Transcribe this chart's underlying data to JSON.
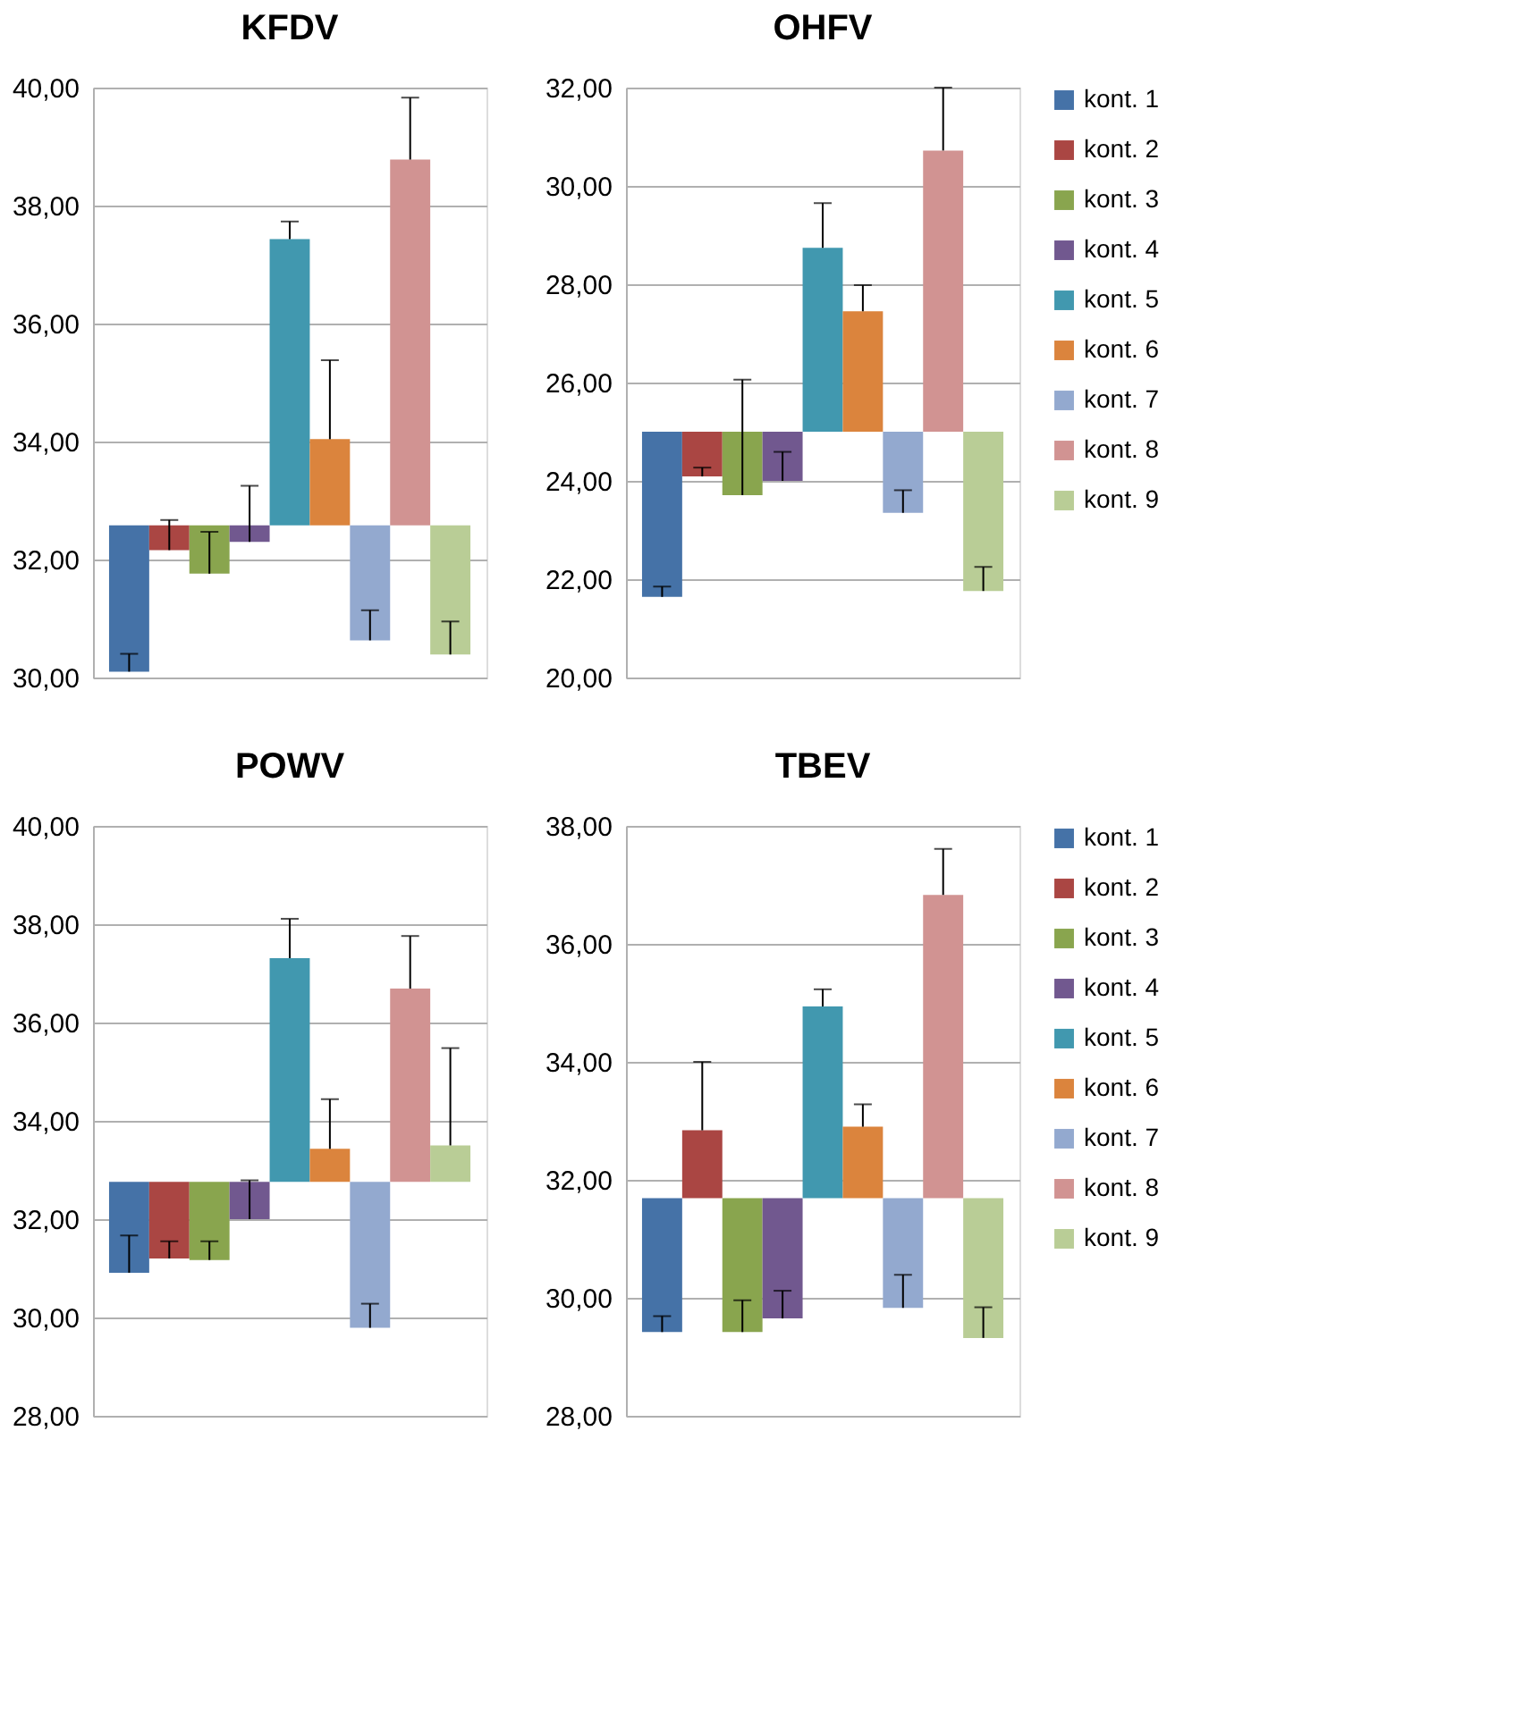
{
  "chart_data": [
    {
      "type": "bar",
      "title": "KFDV",
      "categories": [
        null
      ],
      "ylim": [
        30,
        40
      ],
      "yticks": [
        {
          "value": 30,
          "label": "30,00"
        },
        {
          "value": 32,
          "label": "32,00"
        },
        {
          "value": 34,
          "label": "34,00"
        },
        {
          "value": 36,
          "label": "36,00"
        },
        {
          "value": 38,
          "label": "38,00"
        },
        {
          "value": 40,
          "label": "40,00"
        }
      ],
      "grid": "y",
      "legend": false,
      "series": [
        {
          "color": "#4572a7",
          "base": [
            32.58
          ],
          "values": [
            -2.48
          ],
          "errors": [
            [
              30.1,
              30.4
            ]
          ]
        },
        {
          "color": "#aa4643",
          "base": [
            32.58
          ],
          "values": [
            -0.42
          ],
          "errors": [
            [
              32.16,
              32.67
            ]
          ]
        },
        {
          "color": "#89a54e",
          "base": [
            32.58
          ],
          "values": [
            -0.82
          ],
          "errors": [
            [
              31.76,
              32.47
            ]
          ]
        },
        {
          "color": "#71588f",
          "base": [
            32.58
          ],
          "values": [
            -0.28
          ],
          "errors": [
            [
              32.3,
              33.25
            ]
          ]
        },
        {
          "color": "#4198af",
          "base": [
            32.58
          ],
          "values": [
            4.85
          ],
          "errors": [
            [
              37.43,
              37.73
            ]
          ]
        },
        {
          "color": "#db843d",
          "base": [
            32.58
          ],
          "values": [
            1.46
          ],
          "errors": [
            [
              34.04,
              35.38
            ]
          ]
        },
        {
          "color": "#93a9cf",
          "base": [
            32.58
          ],
          "values": [
            -1.95
          ],
          "errors": [
            [
              30.63,
              31.14
            ]
          ]
        },
        {
          "color": "#d19392",
          "base": [
            32.58
          ],
          "values": [
            6.2
          ],
          "errors": [
            [
              38.78,
              39.83
            ]
          ]
        },
        {
          "color": "#b9cd96",
          "base": [
            32.58
          ],
          "values": [
            -2.19
          ],
          "errors": [
            [
              30.39,
              30.95
            ]
          ]
        }
      ]
    },
    {
      "type": "bar",
      "title": "OHFV",
      "categories": [
        null
      ],
      "ylim": [
        20,
        32
      ],
      "yticks": [
        {
          "value": 20,
          "label": "20,00"
        },
        {
          "value": 22,
          "label": "22,00"
        },
        {
          "value": 24,
          "label": "24,00"
        },
        {
          "value": 26,
          "label": "26,00"
        },
        {
          "value": 28,
          "label": "28,00"
        },
        {
          "value": 30,
          "label": "30,00"
        },
        {
          "value": 32,
          "label": "32,00"
        }
      ],
      "grid": "y",
      "legend": "right",
      "series": [
        {
          "name": "kont. 1",
          "color": "#4572a7",
          "base": [
            25.0
          ],
          "values": [
            -3.36
          ],
          "errors": [
            [
              21.64,
              21.85
            ]
          ]
        },
        {
          "name": "kont. 2",
          "color": "#aa4643",
          "base": [
            25.0
          ],
          "values": [
            -0.91
          ],
          "errors": [
            [
              24.09,
              24.27
            ]
          ]
        },
        {
          "name": "kont. 3",
          "color": "#89a54e",
          "base": [
            25.0
          ],
          "values": [
            -1.29
          ],
          "errors": [
            [
              23.71,
              26.06
            ]
          ]
        },
        {
          "name": "kont. 4",
          "color": "#71588f",
          "base": [
            25.0
          ],
          "values": [
            -1.0
          ],
          "errors": [
            [
              24.0,
              24.59
            ]
          ]
        },
        {
          "name": "kont. 5",
          "color": "#4198af",
          "base": [
            25.0
          ],
          "values": [
            3.74
          ],
          "errors": [
            [
              28.74,
              29.65
            ]
          ]
        },
        {
          "name": "kont. 6",
          "color": "#db843d",
          "base": [
            25.0
          ],
          "values": [
            2.45
          ],
          "errors": [
            [
              27.45,
              27.98
            ]
          ]
        },
        {
          "name": "kont. 7",
          "color": "#93a9cf",
          "base": [
            25.0
          ],
          "values": [
            -1.65
          ],
          "errors": [
            [
              23.35,
              23.81
            ]
          ]
        },
        {
          "name": "kont. 8",
          "color": "#d19392",
          "base": [
            25.0
          ],
          "values": [
            5.72
          ],
          "errors": [
            [
              30.72,
              32.0
            ]
          ]
        },
        {
          "name": "kont. 9",
          "color": "#b9cd96",
          "base": [
            25.0
          ],
          "values": [
            -3.24
          ],
          "errors": [
            [
              21.76,
              22.25
            ]
          ]
        }
      ]
    },
    {
      "type": "bar",
      "title": "POWV",
      "categories": [
        null
      ],
      "ylim": [
        28,
        40
      ],
      "yticks": [
        {
          "value": 28,
          "label": "28,00"
        },
        {
          "value": 30,
          "label": "30,00"
        },
        {
          "value": 32,
          "label": "32,00"
        },
        {
          "value": 34,
          "label": "34,00"
        },
        {
          "value": 36,
          "label": "36,00"
        },
        {
          "value": 38,
          "label": "38,00"
        },
        {
          "value": 40,
          "label": "40,00"
        }
      ],
      "grid": "y",
      "legend": false,
      "series": [
        {
          "color": "#4572a7",
          "base": [
            32.76
          ],
          "values": [
            -1.85
          ],
          "errors": [
            [
              30.91,
              31.67
            ]
          ]
        },
        {
          "color": "#aa4643",
          "base": [
            32.76
          ],
          "values": [
            -1.56
          ],
          "errors": [
            [
              31.2,
              31.55
            ]
          ]
        },
        {
          "color": "#89a54e",
          "base": [
            32.76
          ],
          "values": [
            -1.59
          ],
          "errors": [
            [
              31.17,
              31.55
            ]
          ]
        },
        {
          "color": "#71588f",
          "base": [
            32.76
          ],
          "values": [
            -0.76
          ],
          "errors": [
            [
              32.0,
              32.79
            ]
          ]
        },
        {
          "color": "#4198af",
          "base": [
            32.76
          ],
          "values": [
            4.55
          ],
          "errors": [
            [
              37.31,
              38.11
            ]
          ]
        },
        {
          "color": "#db843d",
          "base": [
            32.76
          ],
          "values": [
            0.67
          ],
          "errors": [
            [
              33.43,
              34.44
            ]
          ]
        },
        {
          "color": "#93a9cf",
          "base": [
            32.76
          ],
          "values": [
            -2.97
          ],
          "errors": [
            [
              29.79,
              30.28
            ]
          ]
        },
        {
          "color": "#d19392",
          "base": [
            32.76
          ],
          "values": [
            3.93
          ],
          "errors": [
            [
              36.69,
              37.76
            ]
          ]
        },
        {
          "color": "#b9cd96",
          "base": [
            32.76
          ],
          "values": [
            0.74
          ],
          "errors": [
            [
              33.5,
              35.48
            ]
          ]
        }
      ]
    },
    {
      "type": "bar",
      "title": "TBEV",
      "categories": [
        null
      ],
      "ylim": [
        28,
        38
      ],
      "yticks": [
        {
          "value": 28,
          "label": "28,00"
        },
        {
          "value": 30,
          "label": "30,00"
        },
        {
          "value": 32,
          "label": "32,00"
        },
        {
          "value": 34,
          "label": "34,00"
        },
        {
          "value": 36,
          "label": "36,00"
        },
        {
          "value": 38,
          "label": "38,00"
        }
      ],
      "grid": "y",
      "legend": "right",
      "series": [
        {
          "name": "kont. 1",
          "color": "#4572a7",
          "base": [
            31.69
          ],
          "values": [
            -2.27
          ],
          "errors": [
            [
              29.42,
              29.69
            ]
          ]
        },
        {
          "name": "kont. 2",
          "color": "#aa4643",
          "base": [
            31.69
          ],
          "values": [
            1.15
          ],
          "errors": [
            [
              32.84,
              34.0
            ]
          ]
        },
        {
          "name": "kont. 3",
          "color": "#89a54e",
          "base": [
            31.69
          ],
          "values": [
            -2.27
          ],
          "errors": [
            [
              29.42,
              29.96
            ]
          ]
        },
        {
          "name": "kont. 4",
          "color": "#71588f",
          "base": [
            31.69
          ],
          "values": [
            -2.04
          ],
          "errors": [
            [
              29.65,
              30.12
            ]
          ]
        },
        {
          "name": "kont. 5",
          "color": "#4198af",
          "base": [
            31.69
          ],
          "values": [
            3.25
          ],
          "errors": [
            [
              34.94,
              35.23
            ]
          ]
        },
        {
          "name": "kont. 6",
          "color": "#db843d",
          "base": [
            31.69
          ],
          "values": [
            1.21
          ],
          "errors": [
            [
              32.9,
              33.28
            ]
          ]
        },
        {
          "name": "kont. 7",
          "color": "#93a9cf",
          "base": [
            31.69
          ],
          "values": [
            -1.86
          ],
          "errors": [
            [
              29.83,
              30.39
            ]
          ]
        },
        {
          "name": "kont. 8",
          "color": "#d19392",
          "base": [
            31.69
          ],
          "values": [
            5.14
          ],
          "errors": [
            [
              36.83,
              37.61
            ]
          ]
        },
        {
          "name": "kont. 9",
          "color": "#b9cd96",
          "base": [
            31.69
          ],
          "values": [
            -2.37
          ],
          "errors": [
            [
              29.32,
              29.84
            ]
          ]
        }
      ]
    }
  ]
}
